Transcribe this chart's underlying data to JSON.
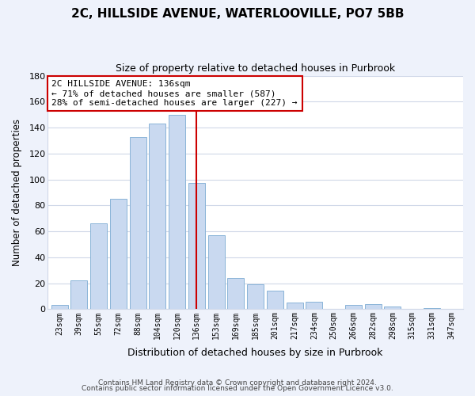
{
  "title": "2C, HILLSIDE AVENUE, WATERLOOVILLE, PO7 5BB",
  "subtitle": "Size of property relative to detached houses in Purbrook",
  "xlabel": "Distribution of detached houses by size in Purbrook",
  "ylabel": "Number of detached properties",
  "bin_labels": [
    "23sqm",
    "39sqm",
    "55sqm",
    "72sqm",
    "88sqm",
    "104sqm",
    "120sqm",
    "136sqm",
    "153sqm",
    "169sqm",
    "185sqm",
    "201sqm",
    "217sqm",
    "234sqm",
    "250sqm",
    "266sqm",
    "282sqm",
    "298sqm",
    "315sqm",
    "331sqm",
    "347sqm"
  ],
  "bar_heights": [
    3,
    22,
    66,
    85,
    133,
    143,
    150,
    97,
    57,
    24,
    19,
    14,
    5,
    6,
    0,
    3,
    4,
    2,
    0,
    1,
    0
  ],
  "bar_color": "#c9d9f0",
  "bar_edge_color": "#8ab4d8",
  "highlight_index": 7,
  "vline_color": "#cc0000",
  "annotation_line1": "2C HILLSIDE AVENUE: 136sqm",
  "annotation_line2": "← 71% of detached houses are smaller (587)",
  "annotation_line3": "28% of semi-detached houses are larger (227) →",
  "annotation_box_color": "#ffffff",
  "annotation_box_edge": "#cc0000",
  "ylim": [
    0,
    180
  ],
  "yticks": [
    0,
    20,
    40,
    60,
    80,
    100,
    120,
    140,
    160,
    180
  ],
  "footer1": "Contains HM Land Registry data © Crown copyright and database right 2024.",
  "footer2": "Contains public sector information licensed under the Open Government Licence v3.0.",
  "bg_color": "#eef2fb",
  "plot_bg_color": "#ffffff",
  "grid_color": "#d0d8e8",
  "title_fontsize": 11,
  "subtitle_fontsize": 9
}
